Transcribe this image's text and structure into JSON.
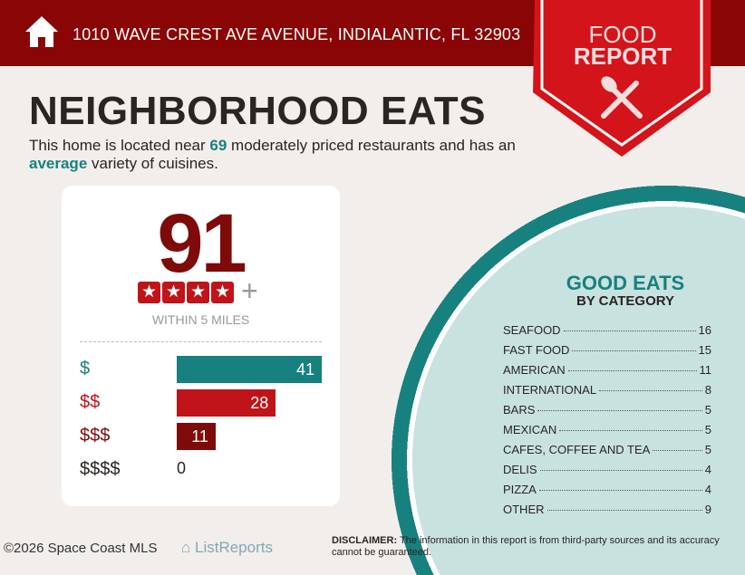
{
  "header": {
    "address": "1010 WAVE CREST AVE AVENUE, INDIALANTIC, FL 32903",
    "icon": "house-icon"
  },
  "badge": {
    "line1": "FOOD",
    "line2": "REPORT",
    "icon": "spoon-fork-icon"
  },
  "title": "NEIGHBORHOOD EATS",
  "description": {
    "pre": "This home is located near ",
    "count": "69",
    "mid": " moderately priced restaurants and has an ",
    "variety": "average",
    "post": " variety of cuisines."
  },
  "score": {
    "value": "91",
    "stars": 4,
    "plus": "+",
    "within": "WITHIN 5 MILES"
  },
  "price_levels": [
    {
      "label": "$",
      "value": 41,
      "color": "#17817f"
    },
    {
      "label": "$$",
      "value": 28,
      "color": "#c0141a"
    },
    {
      "label": "$$$",
      "value": 11,
      "color": "#7e0a0a"
    },
    {
      "label": "$$$$",
      "value": 0,
      "color": "#2a2422"
    }
  ],
  "categories_title": "GOOD EATS",
  "categories_subtitle": "BY CATEGORY",
  "categories": [
    {
      "name": "SEAFOOD",
      "count": "16"
    },
    {
      "name": "FAST FOOD",
      "count": "15"
    },
    {
      "name": "AMERICAN",
      "count": "11"
    },
    {
      "name": "INTERNATIONAL",
      "count": "8"
    },
    {
      "name": "BARS",
      "count": "5"
    },
    {
      "name": "MEXICAN",
      "count": "5"
    },
    {
      "name": "CAFES, COFFEE AND TEA",
      "count": "5"
    },
    {
      "name": "DELIS",
      "count": "4"
    },
    {
      "name": "PIZZA",
      "count": "4"
    },
    {
      "name": "OTHER",
      "count": "9"
    }
  ],
  "footer": {
    "copyright": "©2026 Space Coast MLS",
    "logo": "ListReports",
    "disclaimer_label": "DISCLAIMER:",
    "disclaimer": " The information in this report is from third-party sources and its accuracy cannot be guaranteed."
  }
}
